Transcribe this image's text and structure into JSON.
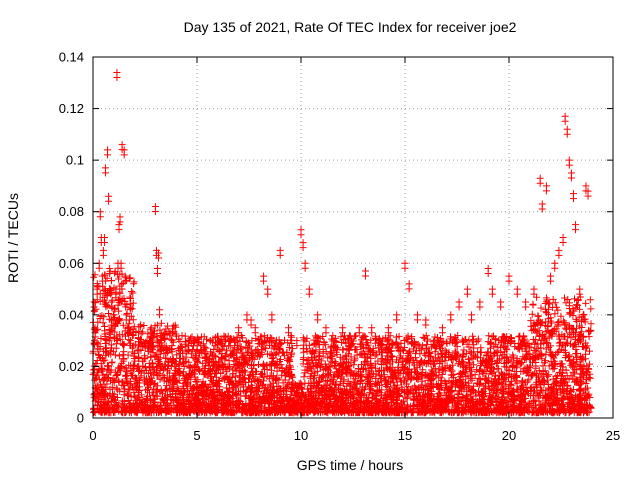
{
  "chart_data": {
    "type": "scatter",
    "title": "Day 135 of 2021, Rate Of TEC Index for receiver joe2",
    "xlabel": "GPS time / hours",
    "ylabel": "ROTI / TECUs",
    "xlim": [
      0,
      25
    ],
    "ylim": [
      0,
      0.14
    ],
    "xticks": [
      0,
      5,
      10,
      15,
      20,
      25
    ],
    "xtick_labels": [
      "0",
      "5",
      "10",
      "15",
      "20",
      "25"
    ],
    "yticks": [
      0,
      0.02,
      0.04,
      0.06,
      0.08,
      0.1,
      0.12,
      0.14
    ],
    "ytick_labels": [
      "0",
      "0.02",
      "0.04",
      "0.06",
      "0.08",
      "0.1",
      "0.12",
      "0.14"
    ],
    "grid": true,
    "marker": "+",
    "color": "#ff0000",
    "series": [
      {
        "name": "ROTI",
        "x": [
          0.05,
          0.1,
          0.2,
          0.3,
          0.35,
          0.4,
          0.45,
          0.5,
          0.55,
          0.6,
          0.7,
          0.75,
          0.8,
          0.85,
          0.9,
          1.0,
          1.1,
          1.15,
          1.2,
          1.25,
          1.3,
          1.35,
          1.4,
          1.5,
          1.55,
          1.6,
          1.7,
          1.8,
          2.0,
          2.2,
          2.4,
          2.6,
          2.8,
          3.0,
          3.05,
          3.1,
          3.15,
          3.2,
          3.3,
          3.5,
          3.8,
          4.2,
          4.6,
          5.0,
          5.4,
          5.8,
          6.2,
          6.6,
          7.0,
          7.4,
          7.6,
          7.8,
          8.2,
          8.4,
          8.6,
          9.0,
          9.4,
          9.8,
          10.0,
          10.1,
          10.2,
          10.4,
          10.8,
          11.2,
          11.6,
          12.0,
          12.4,
          12.8,
          13.1,
          13.4,
          13.8,
          14.2,
          14.6,
          15.0,
          15.2,
          15.6,
          16.0,
          16.4,
          16.8,
          17.2,
          17.6,
          18.0,
          18.2,
          18.6,
          19.0,
          19.2,
          19.6,
          20.0,
          20.4,
          20.8,
          21.2,
          21.5,
          21.6,
          21.8,
          22.0,
          22.2,
          22.4,
          22.6,
          22.7,
          22.8,
          22.9,
          23.0,
          23.1,
          23.2,
          23.4,
          23.6,
          23.7,
          23.8
        ],
        "y": [
          0.045,
          0.035,
          0.05,
          0.06,
          0.08,
          0.07,
          0.055,
          0.065,
          0.07,
          0.097,
          0.104,
          0.086,
          0.058,
          0.05,
          0.045,
          0.04,
          0.05,
          0.134,
          0.06,
          0.075,
          0.078,
          0.06,
          0.106,
          0.104,
          0.055,
          0.04,
          0.035,
          0.03,
          0.025,
          0.028,
          0.022,
          0.03,
          0.035,
          0.082,
          0.065,
          0.058,
          0.064,
          0.042,
          0.032,
          0.025,
          0.03,
          0.025,
          0.03,
          0.028,
          0.025,
          0.022,
          0.025,
          0.03,
          0.035,
          0.04,
          0.038,
          0.035,
          0.055,
          0.05,
          0.04,
          0.065,
          0.035,
          0.03,
          0.073,
          0.068,
          0.06,
          0.05,
          0.04,
          0.035,
          0.03,
          0.035,
          0.03,
          0.035,
          0.057,
          0.035,
          0.03,
          0.035,
          0.04,
          0.06,
          0.052,
          0.04,
          0.038,
          0.03,
          0.035,
          0.04,
          0.045,
          0.05,
          0.04,
          0.045,
          0.058,
          0.05,
          0.045,
          0.055,
          0.05,
          0.045,
          0.05,
          0.093,
          0.083,
          0.09,
          0.055,
          0.06,
          0.065,
          0.07,
          0.117,
          0.112,
          0.1,
          0.095,
          0.087,
          0.075,
          0.05,
          0.04,
          0.09,
          0.088
        ]
      }
    ]
  }
}
